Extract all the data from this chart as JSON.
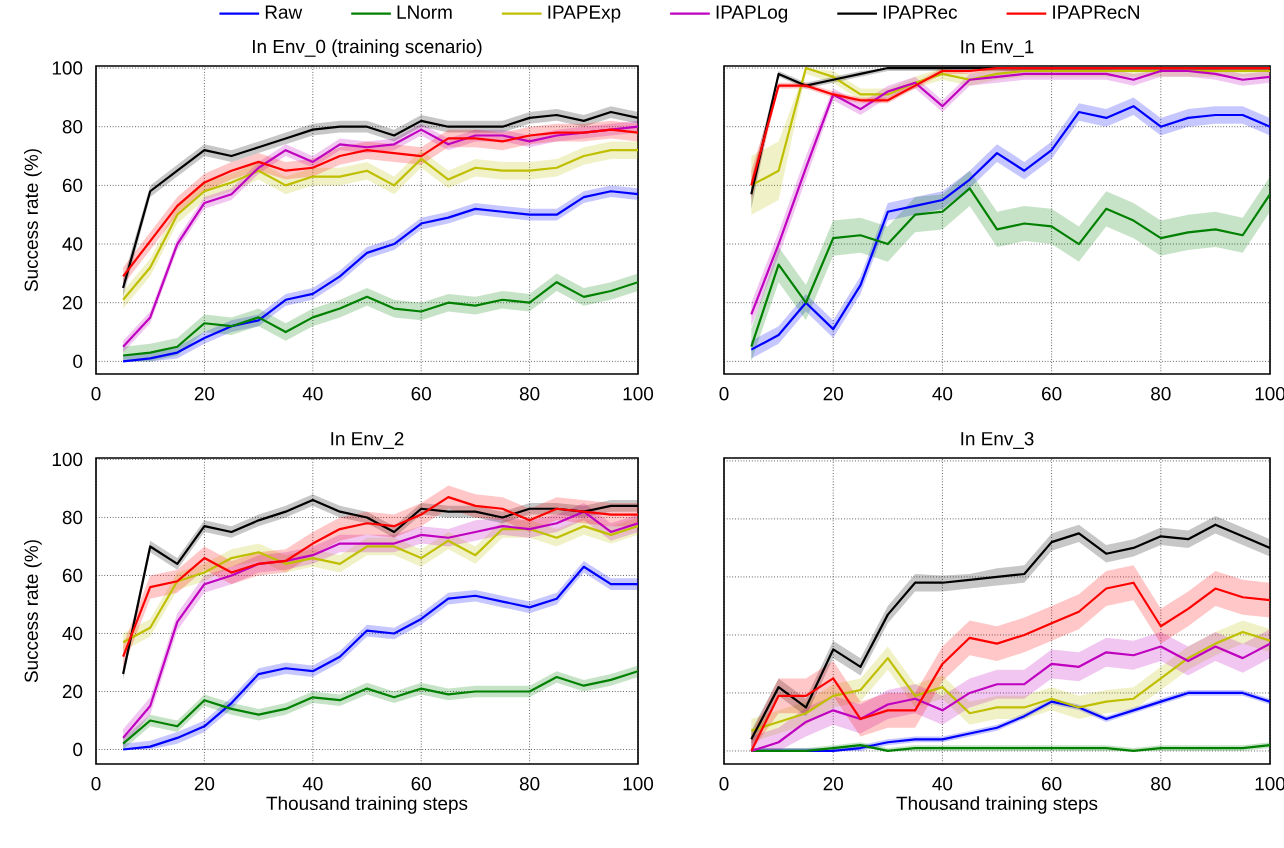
{
  "chart_data": [
    {
      "type": "line",
      "title": "In Env_0 (training scenario)",
      "ylabel": "Success rate (%)",
      "legend": "top",
      "grid": true,
      "x": [
        5,
        10,
        15,
        20,
        25,
        30,
        35,
        40,
        45,
        50,
        55,
        60,
        65,
        70,
        75,
        80,
        85,
        90,
        95,
        100
      ],
      "xlim": [
        0,
        100
      ],
      "ylim": [
        -4.3,
        100.7
      ],
      "xticks": [
        0,
        20,
        40,
        60,
        80,
        100
      ],
      "yticks": [
        0,
        20,
        40,
        60,
        80,
        100
      ],
      "series": [
        {
          "name": "Raw",
          "color": "#0000ff",
          "values": [
            0,
            1,
            3,
            8,
            12,
            14,
            21,
            23,
            29,
            37,
            40,
            47,
            49,
            52,
            51,
            50,
            50,
            56,
            58,
            57
          ],
          "lower": [
            0,
            0,
            1,
            6,
            10,
            12,
            19,
            21,
            27,
            35,
            38,
            45,
            47,
            50,
            49,
            48,
            48,
            54,
            56,
            55
          ],
          "upper": [
            2,
            3,
            5,
            10,
            14,
            16,
            23,
            25,
            31,
            39,
            42,
            49,
            51,
            54,
            53,
            52,
            52,
            58,
            60,
            59
          ]
        },
        {
          "name": "LNorm",
          "color": "#008000",
          "values": [
            2,
            3,
            5,
            13,
            12,
            15,
            10,
            15,
            18,
            22,
            18,
            17,
            20,
            19,
            21,
            20,
            27,
            22,
            24,
            27
          ],
          "lower": [
            0,
            0,
            2,
            10,
            9,
            12,
            7,
            12,
            15,
            19,
            15,
            14,
            17,
            16,
            18,
            17,
            24,
            19,
            21,
            24
          ],
          "upper": [
            5,
            6,
            8,
            16,
            15,
            18,
            13,
            18,
            21,
            25,
            21,
            20,
            23,
            22,
            24,
            23,
            30,
            25,
            27,
            30
          ]
        },
        {
          "name": "IPAPExp",
          "color": "#bfbf00",
          "values": [
            21,
            32,
            50,
            58,
            61,
            65,
            60,
            63,
            63,
            65,
            60,
            69,
            62,
            66,
            65,
            65,
            66,
            70,
            72,
            72
          ],
          "lower": [
            18,
            29,
            47,
            55,
            58,
            62,
            57,
            60,
            60,
            62,
            57,
            66,
            59,
            63,
            62,
            62,
            63,
            67,
            69,
            69
          ],
          "upper": [
            24,
            35,
            53,
            61,
            64,
            68,
            63,
            66,
            66,
            68,
            63,
            72,
            65,
            69,
            68,
            68,
            69,
            73,
            75,
            75
          ]
        },
        {
          "name": "IPAPLog",
          "color": "#bf00bf",
          "values": [
            5,
            15,
            40,
            54,
            57,
            66,
            72,
            68,
            74,
            73,
            74,
            79,
            74,
            77,
            77,
            75,
            77,
            78,
            79,
            80
          ],
          "lower": [
            3,
            13,
            38,
            52,
            55,
            64,
            70,
            66,
            72,
            71,
            72,
            77,
            72,
            75,
            75,
            73,
            75,
            76,
            77,
            78
          ],
          "upper": [
            7,
            17,
            42,
            56,
            59,
            68,
            74,
            70,
            76,
            75,
            76,
            81,
            76,
            79,
            79,
            77,
            79,
            80,
            81,
            82
          ]
        },
        {
          "name": "IPAPRec",
          "color": "#000000",
          "values": [
            25,
            58,
            65,
            72,
            70,
            73,
            76,
            79,
            80,
            80,
            77,
            82,
            80,
            80,
            80,
            83,
            84,
            82,
            85,
            83
          ],
          "lower": [
            22,
            56,
            63,
            70,
            68,
            71,
            74,
            77,
            78,
            78,
            75,
            80,
            78,
            78,
            78,
            81,
            82,
            80,
            83,
            81
          ],
          "upper": [
            28,
            60,
            67,
            74,
            72,
            75,
            78,
            81,
            82,
            82,
            79,
            84,
            82,
            82,
            82,
            85,
            86,
            84,
            87,
            85
          ]
        },
        {
          "name": "IPAPRecN",
          "color": "#ff0000",
          "values": [
            29,
            41,
            53,
            61,
            65,
            68,
            65,
            66,
            70,
            72,
            71,
            70,
            76,
            76,
            75,
            77,
            78,
            78,
            79,
            78
          ],
          "lower": [
            26,
            38,
            50,
            58,
            62,
            65,
            62,
            63,
            67,
            69,
            68,
            67,
            73,
            73,
            72,
            74,
            75,
            75,
            76,
            75
          ],
          "upper": [
            32,
            44,
            56,
            64,
            68,
            71,
            68,
            69,
            73,
            75,
            74,
            73,
            79,
            79,
            78,
            80,
            81,
            81,
            82,
            81
          ]
        }
      ]
    },
    {
      "type": "line",
      "title": "In Env_1",
      "tick_labels": "x",
      "grid": true,
      "x": [
        5,
        10,
        15,
        20,
        25,
        30,
        35,
        40,
        45,
        50,
        55,
        60,
        65,
        70,
        75,
        80,
        85,
        90,
        95,
        100
      ],
      "xlim": [
        0,
        100
      ],
      "ylim": [
        -4.3,
        100.7
      ],
      "xticks": [
        0,
        20,
        40,
        60,
        80,
        100
      ],
      "yticks": [
        0,
        20,
        40,
        60,
        80,
        100
      ],
      "series": [
        {
          "color": "#0000ff",
          "values": [
            4,
            9,
            20,
            11,
            26,
            51,
            53,
            55,
            62,
            71,
            65,
            72,
            85,
            83,
            87,
            80,
            83,
            84,
            84,
            80
          ],
          "lower": [
            1,
            6,
            17,
            8,
            23,
            48,
            50,
            52,
            59,
            68,
            62,
            69,
            82,
            80,
            84,
            77,
            80,
            81,
            81,
            77
          ],
          "upper": [
            7,
            12,
            23,
            14,
            29,
            54,
            56,
            58,
            65,
            74,
            68,
            75,
            88,
            86,
            90,
            83,
            86,
            87,
            87,
            83
          ]
        },
        {
          "color": "#008000",
          "values": [
            5,
            33,
            20,
            42,
            43,
            40,
            50,
            51,
            59,
            45,
            47,
            46,
            40,
            52,
            48,
            42,
            44,
            45,
            43,
            57
          ],
          "lower": [
            0,
            27,
            14,
            36,
            37,
            34,
            44,
            45,
            53,
            39,
            41,
            40,
            34,
            46,
            42,
            36,
            38,
            39,
            37,
            51
          ],
          "upper": [
            11,
            39,
            26,
            48,
            49,
            46,
            56,
            57,
            65,
            51,
            53,
            52,
            46,
            58,
            54,
            48,
            50,
            51,
            49,
            63
          ]
        },
        {
          "color": "#bfbf00",
          "values": [
            60,
            65,
            100,
            97,
            91,
            91,
            95,
            98,
            96,
            98,
            99,
            99,
            99,
            99,
            99,
            99,
            99,
            99,
            99,
            99
          ],
          "lower": [
            50,
            55,
            98,
            95,
            89,
            89,
            93,
            96,
            94,
            96,
            97,
            97,
            97,
            97,
            97,
            97,
            97,
            97,
            97,
            97
          ],
          "upper": [
            70,
            75,
            100,
            99,
            93,
            93,
            97,
            100,
            98,
            100,
            100,
            100,
            100,
            100,
            100,
            100,
            100,
            100,
            100,
            100
          ]
        },
        {
          "color": "#bf00bf",
          "values": [
            16,
            40,
            66,
            91,
            86,
            92,
            95,
            87,
            96,
            97,
            98,
            98,
            98,
            98,
            96,
            99,
            99,
            98,
            96,
            97
          ],
          "lower": [
            12,
            36,
            62,
            89,
            84,
            90,
            93,
            85,
            94,
            95,
            96,
            96,
            96,
            96,
            94,
            97,
            97,
            96,
            94,
            95
          ],
          "upper": [
            20,
            44,
            70,
            93,
            88,
            94,
            97,
            89,
            98,
            99,
            100,
            100,
            100,
            100,
            98,
            99.5,
            99.5,
            100,
            98,
            99
          ]
        },
        {
          "color": "#000000",
          "values": [
            57,
            98,
            94,
            96,
            98,
            100,
            100,
            100,
            100,
            100,
            100,
            100,
            100,
            100,
            100,
            100,
            100,
            100,
            100,
            100
          ],
          "lower": [
            52,
            97,
            93,
            95,
            97,
            99,
            99,
            99,
            99,
            99,
            99,
            99,
            99,
            99,
            99,
            99,
            99,
            99,
            99,
            99
          ],
          "upper": [
            62,
            99,
            95,
            97,
            99,
            100,
            100,
            100,
            100,
            100,
            100,
            100,
            100,
            100,
            100,
            100,
            100,
            100,
            100,
            100
          ]
        },
        {
          "color": "#ff0000",
          "values": [
            60,
            94,
            94,
            91,
            89,
            89,
            94,
            99,
            99,
            100,
            100,
            100,
            100,
            100,
            100,
            100,
            100,
            100,
            100,
            100
          ],
          "lower": [
            55,
            93,
            93,
            90,
            88,
            88,
            93,
            98,
            98,
            99,
            99,
            99,
            99,
            99,
            99,
            99,
            99,
            99,
            99,
            99
          ],
          "upper": [
            65,
            95,
            95,
            92,
            90,
            90,
            95,
            100,
            100,
            100,
            100,
            100,
            100,
            100,
            100,
            100,
            100,
            100,
            100,
            100
          ]
        }
      ]
    },
    {
      "type": "line",
      "title": "In Env_2",
      "xlabel": "Thousand training steps",
      "ylabel": "Success rate (%)",
      "grid": true,
      "x": [
        5,
        10,
        15,
        20,
        25,
        30,
        35,
        40,
        45,
        50,
        55,
        60,
        65,
        70,
        75,
        80,
        85,
        90,
        95,
        100
      ],
      "xlim": [
        0,
        100
      ],
      "ylim": [
        -5,
        100.5
      ],
      "xticks": [
        0,
        20,
        40,
        60,
        80,
        100
      ],
      "yticks": [
        0,
        20,
        40,
        60,
        80,
        100
      ],
      "series": [
        {
          "color": "#0000ff",
          "values": [
            0,
            1,
            4,
            8,
            16,
            26,
            28,
            27,
            32,
            41,
            40,
            45,
            52,
            53,
            51,
            49,
            52,
            63,
            57,
            57
          ],
          "lower": [
            0,
            0,
            2,
            6,
            14,
            24,
            26,
            25,
            30,
            39,
            38,
            43,
            50,
            51,
            49,
            47,
            50,
            61,
            55,
            55
          ],
          "upper": [
            2,
            3,
            6,
            10,
            18,
            28,
            30,
            29,
            34,
            43,
            42,
            47,
            54,
            55,
            53,
            51,
            54,
            65,
            59,
            59
          ]
        },
        {
          "color": "#008000",
          "values": [
            2,
            10,
            8,
            17,
            14,
            12,
            14,
            18,
            17,
            21,
            18,
            21,
            19,
            20,
            20,
            20,
            25,
            22,
            24,
            27
          ],
          "lower": [
            0,
            8,
            6,
            15,
            12,
            10,
            12,
            16,
            15,
            19,
            16,
            19,
            17,
            18,
            18,
            18,
            23,
            20,
            22,
            25
          ],
          "upper": [
            4,
            12,
            10,
            19,
            16,
            14,
            16,
            20,
            19,
            23,
            20,
            23,
            21,
            22,
            22,
            22,
            27,
            24,
            26,
            29
          ]
        },
        {
          "color": "#bfbf00",
          "values": [
            37,
            42,
            58,
            61,
            66,
            68,
            64,
            66,
            64,
            70,
            70,
            66,
            72,
            67,
            76,
            76,
            73,
            77,
            74,
            77
          ],
          "lower": [
            34,
            39,
            55,
            58,
            63,
            65,
            61,
            63,
            61,
            67,
            67,
            63,
            69,
            64,
            73,
            73,
            70,
            74,
            71,
            74
          ],
          "upper": [
            40,
            45,
            61,
            64,
            69,
            71,
            67,
            69,
            67,
            73,
            73,
            69,
            75,
            70,
            79,
            79,
            76,
            80,
            77,
            80
          ]
        },
        {
          "color": "#bf00bf",
          "values": [
            4,
            15,
            44,
            57,
            60,
            64,
            65,
            67,
            71,
            71,
            71,
            74,
            73,
            75,
            77,
            76,
            78,
            82,
            75,
            78
          ],
          "lower": [
            1,
            12,
            41,
            54,
            57,
            61,
            62,
            64,
            68,
            68,
            68,
            71,
            70,
            72,
            74,
            73,
            75,
            79,
            72,
            75
          ],
          "upper": [
            7,
            18,
            47,
            60,
            63,
            67,
            68,
            70,
            74,
            74,
            74,
            77,
            76,
            79,
            80,
            79,
            81,
            85,
            78,
            81
          ]
        },
        {
          "color": "#000000",
          "values": [
            26,
            70,
            64,
            77,
            75,
            79,
            82,
            86,
            82,
            80,
            75,
            83,
            82,
            82,
            80,
            83,
            83,
            82,
            84,
            84
          ],
          "lower": [
            24,
            68,
            62,
            75,
            73,
            77,
            80,
            84,
            80,
            78,
            73,
            81,
            80,
            80,
            78,
            81,
            81,
            80,
            82,
            82
          ],
          "upper": [
            28,
            72,
            66,
            79,
            77,
            81,
            84,
            88,
            84,
            82,
            77,
            85,
            84,
            84,
            82,
            85,
            85,
            84,
            86,
            86
          ]
        },
        {
          "color": "#ff0000",
          "values": [
            32,
            56,
            58,
            66,
            61,
            64,
            65,
            71,
            76,
            78,
            77,
            81,
            87,
            84,
            83,
            79,
            83,
            82,
            81,
            81
          ],
          "lower": [
            28,
            52,
            54,
            62,
            57,
            60,
            61,
            67,
            72,
            74,
            73,
            77,
            83,
            80,
            79,
            75,
            79,
            78,
            77,
            77
          ],
          "upper": [
            36,
            60,
            62,
            70,
            65,
            68,
            69,
            75,
            80,
            82,
            81,
            85,
            91,
            88,
            87,
            83,
            87,
            86,
            85,
            85
          ]
        }
      ]
    },
    {
      "type": "line",
      "title": "In Env_3",
      "xlabel": "Thousand training steps",
      "tick_labels": "x",
      "grid": true,
      "x": [
        5,
        10,
        15,
        20,
        25,
        30,
        35,
        40,
        45,
        50,
        55,
        60,
        65,
        70,
        75,
        80,
        85,
        90,
        95,
        100
      ],
      "xlim": [
        0,
        100
      ],
      "ylim": [
        -4.5,
        101
      ],
      "xticks": [
        0,
        20,
        40,
        60,
        80,
        100
      ],
      "yticks": [
        0,
        20,
        40,
        60,
        80,
        100
      ],
      "series": [
        {
          "color": "#0000ff",
          "values": [
            0,
            0,
            0,
            0,
            1,
            3,
            4,
            4,
            6,
            8,
            12,
            17,
            15,
            11,
            14,
            17,
            20,
            20,
            20,
            17
          ],
          "lower": [
            0,
            0,
            0,
            0,
            0,
            2,
            3,
            3,
            5,
            7,
            11,
            16,
            14,
            10,
            13,
            16,
            19,
            19,
            19,
            16
          ],
          "upper": [
            1,
            1,
            1,
            1,
            2,
            4,
            5,
            5,
            7,
            9,
            13,
            18,
            16,
            12,
            15,
            18,
            21,
            21,
            21,
            18
          ]
        },
        {
          "color": "#008000",
          "values": [
            0,
            0,
            0,
            1,
            2,
            0,
            1,
            1,
            1,
            1,
            1,
            1,
            1,
            1,
            0,
            1,
            1,
            1,
            1,
            2
          ],
          "lower": [
            0,
            0,
            0,
            0,
            1,
            0,
            0,
            0,
            0,
            0,
            0,
            0,
            0,
            0,
            0,
            0,
            0,
            0,
            0,
            1
          ],
          "upper": [
            1,
            1,
            1,
            2,
            3,
            1,
            2,
            2,
            2,
            2,
            2,
            2,
            2,
            2,
            1,
            2,
            2,
            2,
            2,
            3
          ]
        },
        {
          "color": "#bfbf00",
          "values": [
            7,
            10,
            13,
            19,
            21,
            32,
            19,
            22,
            13,
            15,
            15,
            18,
            15,
            17,
            18,
            25,
            32,
            37,
            41,
            38
          ],
          "lower": [
            3,
            6,
            9,
            15,
            17,
            28,
            15,
            18,
            9,
            11,
            11,
            14,
            11,
            13,
            14,
            21,
            28,
            33,
            37,
            34
          ],
          "upper": [
            11,
            14,
            17,
            23,
            25,
            36,
            23,
            26,
            17,
            19,
            19,
            22,
            19,
            21,
            22,
            29,
            36,
            41,
            45,
            42
          ]
        },
        {
          "color": "#bf00bf",
          "values": [
            0,
            3,
            10,
            14,
            11,
            16,
            18,
            14,
            20,
            23,
            23,
            30,
            29,
            34,
            33,
            36,
            31,
            36,
            32,
            37
          ],
          "lower": [
            0,
            0,
            5,
            9,
            6,
            11,
            13,
            9,
            15,
            18,
            18,
            25,
            24,
            29,
            28,
            31,
            26,
            31,
            27,
            32
          ],
          "upper": [
            5,
            8,
            15,
            19,
            16,
            21,
            23,
            19,
            25,
            28,
            28,
            35,
            34,
            39,
            38,
            41,
            36,
            41,
            37,
            42
          ]
        },
        {
          "color": "#000000",
          "values": [
            4,
            22,
            15,
            35,
            29,
            47,
            58,
            58,
            59,
            60,
            61,
            72,
            75,
            68,
            70,
            74,
            73,
            78,
            74,
            70
          ],
          "lower": [
            1,
            19,
            12,
            32,
            26,
            44,
            55,
            55,
            56,
            57,
            58,
            69,
            72,
            65,
            67,
            71,
            70,
            75,
            71,
            67
          ],
          "upper": [
            7,
            25,
            18,
            38,
            32,
            50,
            61,
            60.5,
            61,
            63,
            64,
            75,
            78,
            71,
            73,
            77,
            76,
            81,
            77,
            73
          ]
        },
        {
          "color": "#ff0000",
          "values": [
            0,
            19,
            19,
            25,
            11,
            14,
            14,
            30,
            39,
            37,
            40,
            44,
            48,
            56,
            58,
            43,
            49,
            56,
            53,
            52
          ],
          "lower": [
            0,
            13,
            13,
            19,
            5,
            8,
            8,
            24,
            33,
            31,
            34,
            38,
            42,
            50,
            52,
            37,
            43,
            50,
            47,
            46
          ],
          "upper": [
            6,
            25,
            25,
            31,
            17,
            20,
            20,
            36,
            45,
            43,
            46,
            50,
            54,
            62,
            64,
            49,
            55,
            62,
            59,
            58
          ]
        }
      ]
    }
  ]
}
